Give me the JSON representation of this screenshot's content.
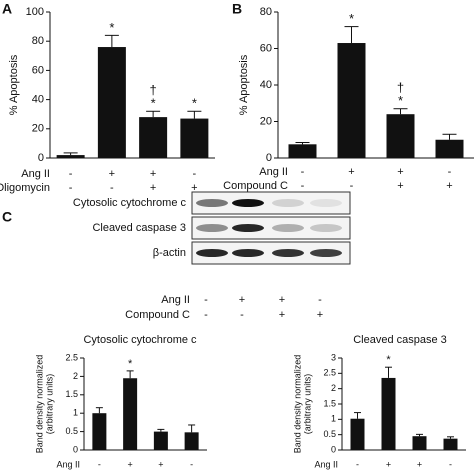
{
  "chart_data": [
    {
      "type": "bar",
      "panel": "A",
      "ylabel": [
        "% Apoptosis"
      ],
      "ylim": [
        0,
        100
      ],
      "yticks": [
        0,
        20,
        40,
        60,
        80,
        100
      ],
      "color": "#111111",
      "values": [
        2,
        76,
        28,
        27
      ],
      "errors": [
        1.5,
        8,
        4,
        5
      ],
      "markers": [
        null,
        [
          "*"
        ],
        [
          "†",
          "*"
        ],
        [
          "*"
        ]
      ],
      "conditions": [
        {
          "label": "Ang II",
          "signs": [
            "-",
            "+",
            "+",
            "-"
          ]
        },
        {
          "label": "Oligomycin",
          "signs": [
            "-",
            "-",
            "+",
            "+"
          ]
        }
      ]
    },
    {
      "type": "bar",
      "panel": "B",
      "ylabel": [
        "% Apoptosis"
      ],
      "ylim": [
        0,
        80
      ],
      "yticks": [
        0,
        20,
        40,
        60,
        80
      ],
      "color": "#111111",
      "values": [
        7.5,
        63,
        24,
        10
      ],
      "errors": [
        1,
        9,
        3,
        3
      ],
      "markers": [
        null,
        [
          "*"
        ],
        [
          "†",
          "*"
        ],
        null
      ],
      "conditions": [
        {
          "label": "Ang II",
          "signs": [
            "-",
            "+",
            "+",
            "-"
          ]
        },
        {
          "label": "Compound C",
          "signs": [
            "-",
            "-",
            "+",
            "+"
          ]
        }
      ]
    },
    {
      "type": "bar",
      "title": "Cytosolic cytochrome c",
      "ylabel": [
        "Band density normalized",
        "(arbitrary units)"
      ],
      "ylim": [
        0,
        2.5
      ],
      "yticks": [
        0,
        0.5,
        1,
        1.5,
        2,
        2.5
      ],
      "color": "#111111",
      "values": [
        1.0,
        1.95,
        0.5,
        0.48
      ],
      "errors": [
        0.15,
        0.2,
        0.06,
        0.2
      ],
      "markers": [
        null,
        [
          "*"
        ],
        null,
        null
      ],
      "conditions": [
        {
          "label": "Ang II",
          "signs": [
            "-",
            "+",
            "+",
            "-"
          ]
        }
      ]
    },
    {
      "type": "bar",
      "title": "Cleaved caspase 3",
      "ylabel": [
        "Band density normalized",
        "(arbitrary units)"
      ],
      "ylim": [
        0,
        3
      ],
      "yticks": [
        0,
        0.5,
        1,
        1.5,
        2,
        2.5,
        3
      ],
      "color": "#111111",
      "values": [
        1.02,
        2.35,
        0.45,
        0.37
      ],
      "errors": [
        0.2,
        0.35,
        0.06,
        0.06
      ],
      "markers": [
        null,
        [
          "*"
        ],
        null,
        null
      ],
      "conditions": [
        {
          "label": "Ang II",
          "signs": [
            "-",
            "+",
            "+",
            "-"
          ]
        }
      ]
    }
  ],
  "blot": {
    "panel": "C",
    "rows": [
      "Cytosolic cytochrome c",
      "Cleaved caspase 3",
      "β-actin"
    ],
    "conditions": [
      {
        "label": "Ang II",
        "signs": [
          "-",
          "+",
          "+",
          "-"
        ]
      },
      {
        "label": "Compound C",
        "signs": [
          "-",
          "-",
          "+",
          "+"
        ]
      }
    ]
  }
}
